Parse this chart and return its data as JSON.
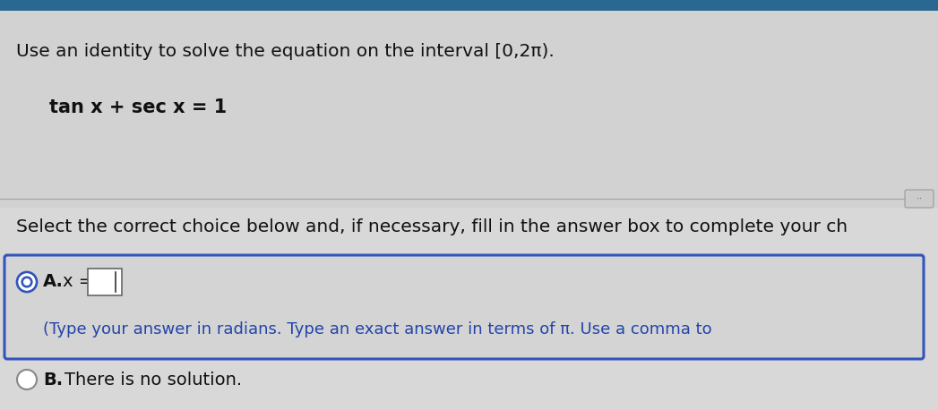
{
  "bg_color": "#d4d4d4",
  "top_bg_color": "#d0d0d0",
  "title_text": "Use an identity to solve the equation on the interval [0,2π).",
  "equation_text": "tan x + sec x = 1",
  "select_text": "Select the correct choice below and, if necessary, fill in the answer box to complete your ch",
  "option_a_label": "A.",
  "option_a_x_eq": "x =",
  "option_a_sub": "(Type your answer in radians. Type an exact answer in terms of π. Use a comma to",
  "option_b_label": "B.",
  "option_b_text": "There is no solution.",
  "box_border_color": "#3355bb",
  "radio_selected_color": "#3355bb",
  "radio_unselected_color": "#888888",
  "text_color": "#111111",
  "blue_text_color": "#2244aa",
  "title_fontsize": 14.5,
  "eq_fontsize": 15,
  "select_fontsize": 14.5,
  "option_fontsize": 14,
  "sub_fontsize": 13
}
